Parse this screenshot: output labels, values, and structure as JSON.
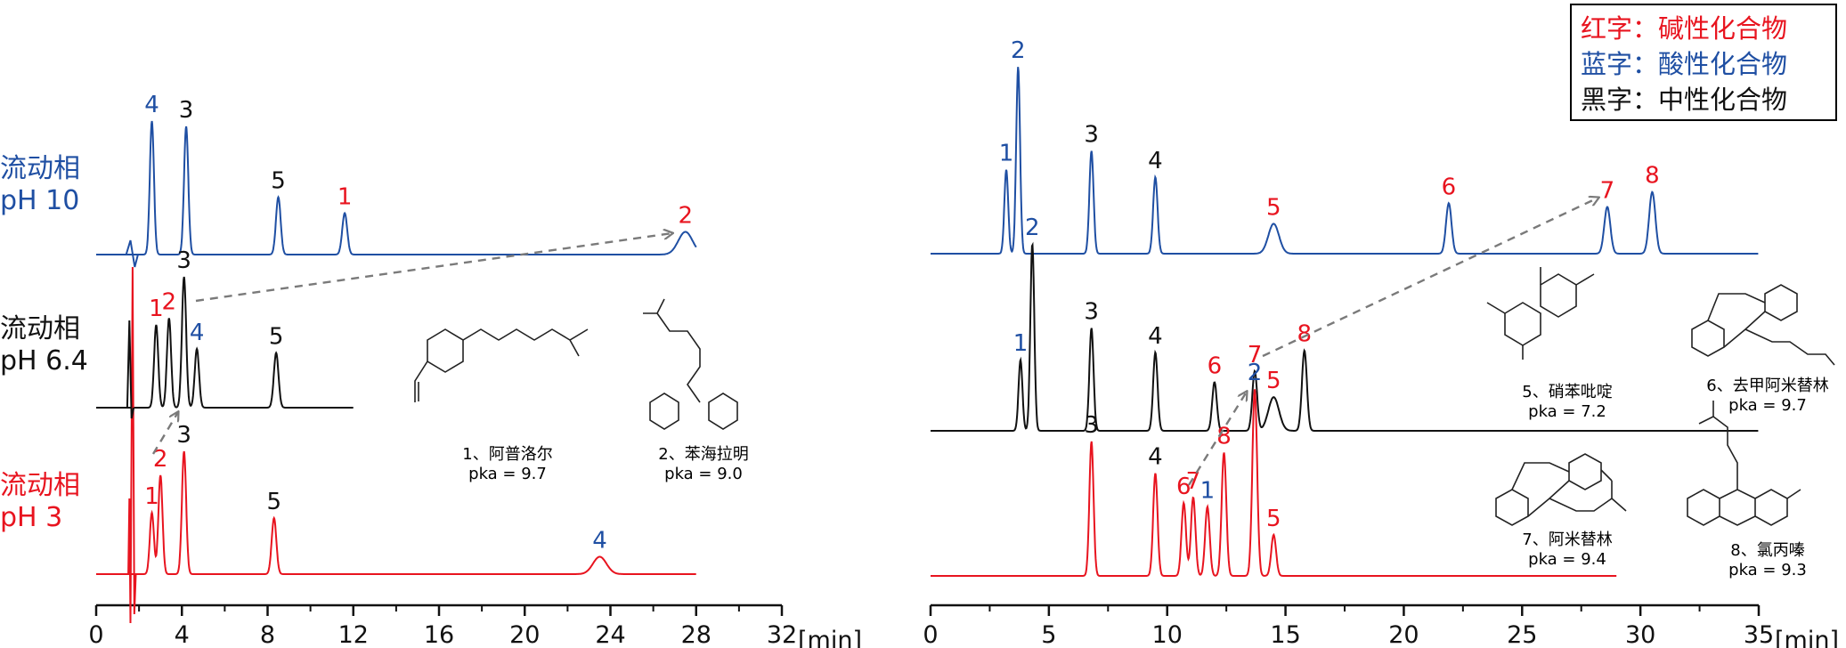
{
  "colors": {
    "acidic": "#1f4fa3",
    "basic": "#e8141f",
    "neutral": "#111111",
    "arrow": "#7a7a7a"
  },
  "legend": {
    "basic": "红字：碱性化合物",
    "acidic": "蓝字：酸性化合物",
    "neutral": "黑字：中性化合物"
  },
  "trace_labels": [
    {
      "id": "ph10",
      "line1": "流动相",
      "line2": "pH 10",
      "color": "acidic"
    },
    {
      "id": "ph64",
      "line1": "流动相",
      "line2": "pH 6.4",
      "color": "neutral"
    },
    {
      "id": "ph3",
      "line1": "流动相",
      "line2": "pH 3",
      "color": "basic"
    }
  ],
  "compounds": [
    {
      "id": "c1",
      "name": "1、阿普洛尔",
      "pka": "pka = 9.7"
    },
    {
      "id": "c2",
      "name": "2、苯海拉明",
      "pka": "pka = 9.0"
    },
    {
      "id": "c5",
      "name": "5、硝苯吡啶",
      "pka": "pka = 7.2"
    },
    {
      "id": "c6",
      "name": "6、去甲阿米替林",
      "pka": "pka = 9.7"
    },
    {
      "id": "c7",
      "name": "7、阿米替林",
      "pka": "pka = 9.4"
    },
    {
      "id": "c8",
      "name": "8、氯丙嗪",
      "pka": "pka = 9.3"
    }
  ],
  "chart_data": [
    {
      "type": "line",
      "xlabel": "[min]",
      "xlim": [
        0,
        32
      ],
      "xticks": [
        "0",
        "4",
        "8",
        "12",
        "16",
        "20",
        "24",
        "28",
        "32"
      ],
      "series": [
        {
          "name": "pH 10",
          "color": "acidic",
          "x_end": 28,
          "peaks": [
            {
              "rt": 2.6,
              "h": 1.0,
              "label": "4",
              "lc": "acidic"
            },
            {
              "rt": 4.2,
              "h": 0.96,
              "label": "3",
              "lc": "neutral"
            },
            {
              "rt": 8.5,
              "h": 0.43,
              "label": "5",
              "lc": "neutral"
            },
            {
              "rt": 11.6,
              "h": 0.31,
              "label": "1",
              "lc": "basic"
            },
            {
              "rt": 27.5,
              "h": 0.17,
              "label": "2",
              "lc": "basic"
            }
          ]
        },
        {
          "name": "pH 6.4",
          "color": "neutral",
          "x_end": 12,
          "peaks": [
            {
              "rt": 2.8,
              "h": 0.62,
              "label": "1",
              "lc": "basic"
            },
            {
              "rt": 3.4,
              "h": 0.67,
              "label": "2",
              "lc": "basic"
            },
            {
              "rt": 4.1,
              "h": 0.98,
              "label": "3",
              "lc": "neutral"
            },
            {
              "rt": 4.7,
              "h": 0.44,
              "label": "4",
              "lc": "acidic"
            },
            {
              "rt": 8.4,
              "h": 0.41,
              "label": "5",
              "lc": "neutral"
            }
          ]
        },
        {
          "name": "pH 3",
          "color": "basic",
          "x_end": 28,
          "peaks": [
            {
              "rt": 2.6,
              "h": 0.46,
              "label": "1",
              "lc": "basic"
            },
            {
              "rt": 3.0,
              "h": 0.74,
              "label": "2",
              "lc": "basic"
            },
            {
              "rt": 4.1,
              "h": 0.92,
              "label": "3",
              "lc": "neutral"
            },
            {
              "rt": 8.3,
              "h": 0.42,
              "label": "5",
              "lc": "neutral"
            },
            {
              "rt": 23.5,
              "h": 0.13,
              "label": "4",
              "lc": "acidic"
            }
          ]
        }
      ]
    },
    {
      "type": "line",
      "xlabel": "[min]",
      "xlim": [
        0,
        35
      ],
      "xticks": [
        "0",
        "5",
        "10",
        "15",
        "20",
        "25",
        "30",
        "35"
      ],
      "series": [
        {
          "name": "pH 10",
          "color": "acidic",
          "x_end": 35,
          "peaks": [
            {
              "rt": 3.2,
              "h": 0.45,
              "label": "1",
              "lc": "acidic"
            },
            {
              "rt": 3.7,
              "h": 1.0,
              "label": "2",
              "lc": "acidic"
            },
            {
              "rt": 6.8,
              "h": 0.55,
              "label": "3",
              "lc": "neutral"
            },
            {
              "rt": 9.5,
              "h": 0.41,
              "label": "4",
              "lc": "neutral"
            },
            {
              "rt": 14.5,
              "h": 0.16,
              "label": "5",
              "lc": "basic"
            },
            {
              "rt": 21.9,
              "h": 0.27,
              "label": "6",
              "lc": "basic"
            },
            {
              "rt": 28.6,
              "h": 0.25,
              "label": "7",
              "lc": "basic"
            },
            {
              "rt": 30.5,
              "h": 0.33,
              "label": "8",
              "lc": "basic"
            }
          ]
        },
        {
          "name": "pH 6.4",
          "color": "neutral",
          "x_end": 35,
          "peaks": [
            {
              "rt": 3.8,
              "h": 0.38,
              "label": "1",
              "lc": "acidic"
            },
            {
              "rt": 4.3,
              "h": 1.0,
              "label": "2",
              "lc": "acidic"
            },
            {
              "rt": 6.8,
              "h": 0.55,
              "label": "3",
              "lc": "neutral"
            },
            {
              "rt": 9.5,
              "h": 0.42,
              "label": "4",
              "lc": "neutral"
            },
            {
              "rt": 12.0,
              "h": 0.26,
              "label": "6",
              "lc": "basic"
            },
            {
              "rt": 13.7,
              "h": 0.32,
              "label": "7",
              "lc": "basic"
            },
            {
              "rt": 14.5,
              "h": 0.18,
              "label": "5",
              "lc": "basic"
            },
            {
              "rt": 15.8,
              "h": 0.43,
              "label": "8",
              "lc": "basic"
            }
          ]
        },
        {
          "name": "pH 3",
          "color": "basic",
          "x_end": 29,
          "peaks": [
            {
              "rt": 6.8,
              "h": 0.72,
              "label": "3",
              "lc": "neutral"
            },
            {
              "rt": 9.5,
              "h": 0.55,
              "label": "4",
              "lc": "neutral"
            },
            {
              "rt": 10.7,
              "h": 0.39,
              "label": "6",
              "lc": "basic"
            },
            {
              "rt": 11.1,
              "h": 0.42,
              "label": "7",
              "lc": "basic"
            },
            {
              "rt": 11.7,
              "h": 0.37,
              "label": "1",
              "lc": "acidic"
            },
            {
              "rt": 12.4,
              "h": 0.66,
              "label": "8",
              "lc": "basic"
            },
            {
              "rt": 13.7,
              "h": 1.0,
              "label": "2",
              "lc": "acidic"
            },
            {
              "rt": 14.5,
              "h": 0.22,
              "label": "5",
              "lc": "basic"
            }
          ]
        }
      ]
    }
  ]
}
